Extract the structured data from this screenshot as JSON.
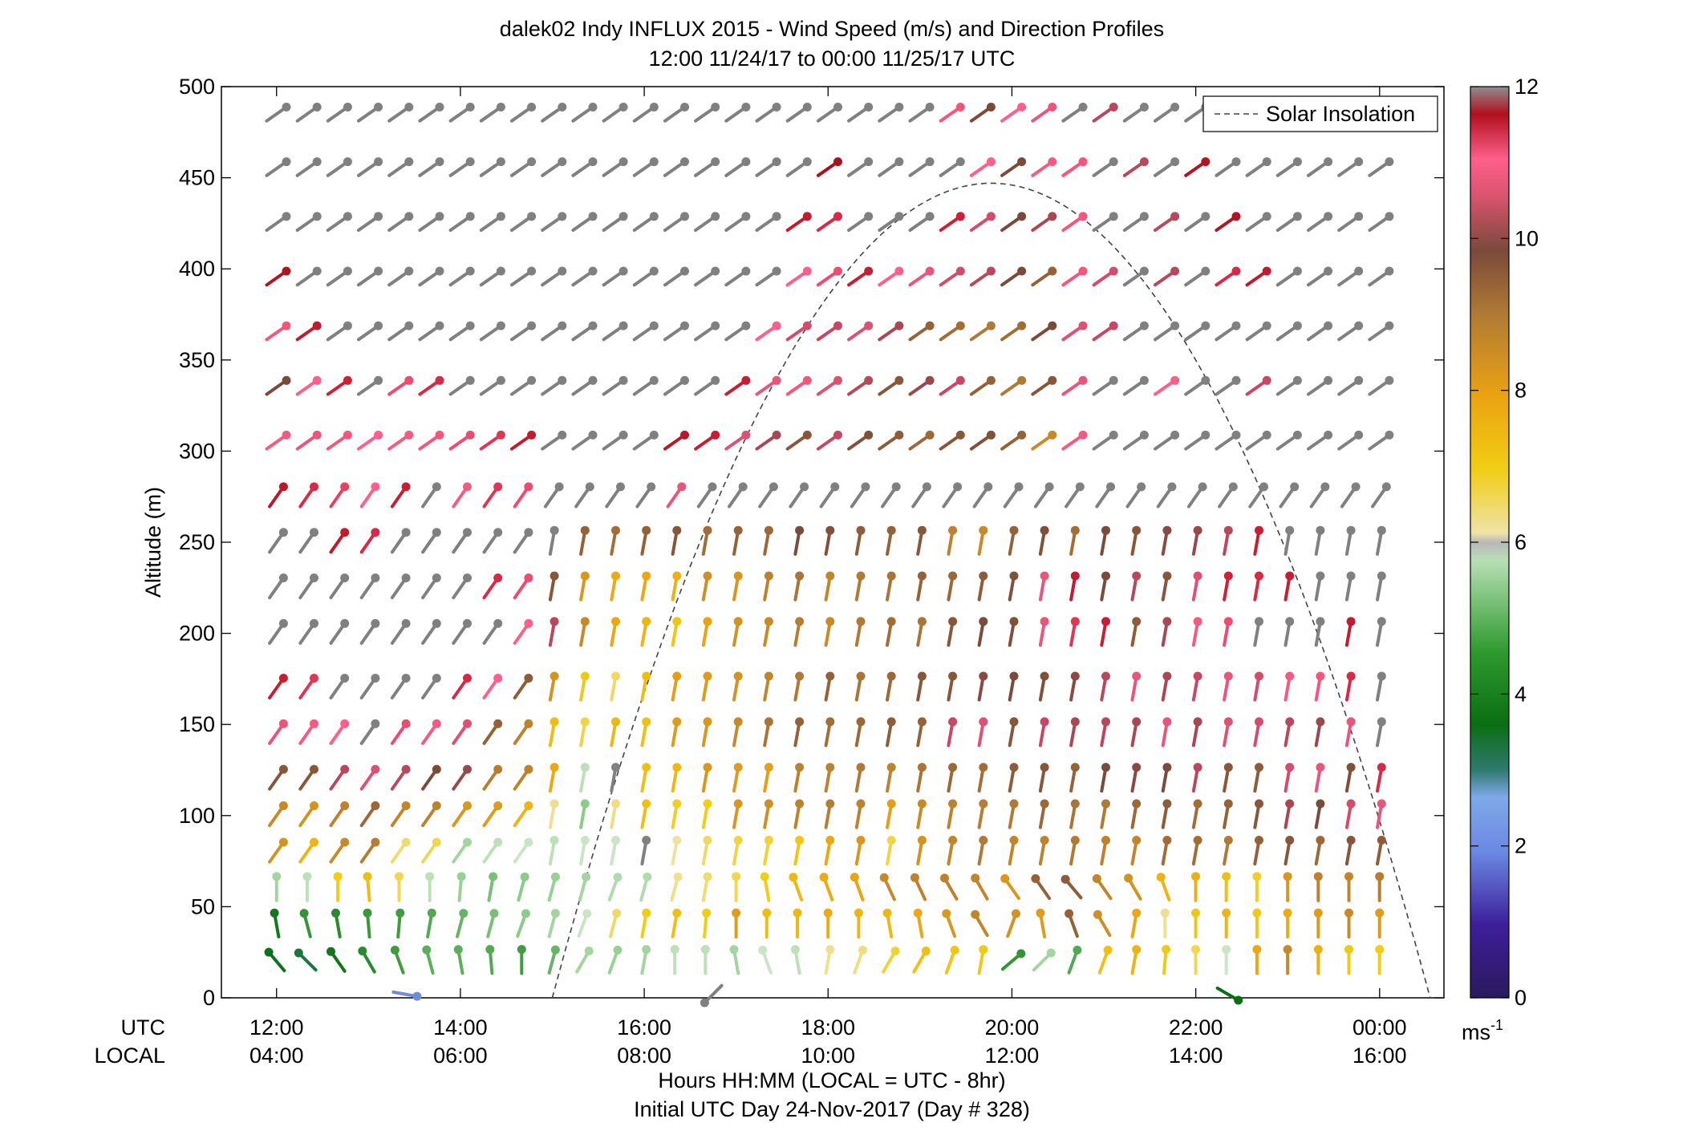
{
  "chart_data": {
    "type": "wind-profile",
    "title": "dalek02 Indy INFLUX 2015 - Wind Speed (m/s) and Direction Profiles",
    "subtitle": "12:00 11/24/17 to 00:00 11/25/17  UTC",
    "ylabel": "Altitude (m)",
    "xlabel": "Hours HH:MM  (LOCAL = UTC - 8hr)",
    "xlabel2": "Initial UTC Day 24-Nov-2017 (Day # 328)",
    "x_row_labels": [
      "UTC",
      "LOCAL"
    ],
    "xlim_hours": [
      11.4,
      24.7
    ],
    "ylim": [
      0,
      500
    ],
    "y_ticks": [
      0,
      50,
      100,
      150,
      200,
      250,
      300,
      350,
      400,
      450,
      500
    ],
    "x_ticks": [
      {
        "hour": 12,
        "utc": "12:00",
        "local": "04:00"
      },
      {
        "hour": 14,
        "utc": "14:00",
        "local": "06:00"
      },
      {
        "hour": 16,
        "utc": "16:00",
        "local": "08:00"
      },
      {
        "hour": 18,
        "utc": "18:00",
        "local": "10:00"
      },
      {
        "hour": 20,
        "utc": "20:00",
        "local": "12:00"
      },
      {
        "hour": 22,
        "utc": "22:00",
        "local": "14:00"
      },
      {
        "hour": 24,
        "utc": "00:00",
        "local": "16:00"
      }
    ],
    "legend": {
      "label": "Solar Insolation",
      "position": "top-right"
    },
    "colorbar": {
      "min": 0,
      "max": 12,
      "ticks": [
        0,
        2,
        4,
        6,
        8,
        10,
        12
      ],
      "unit": "ms",
      "unit_exponent": "-1"
    },
    "solar_insolation": {
      "start_hour": 15.0,
      "peak_hour": 19.75,
      "end_hour": 24.55,
      "peak_altitude": 447
    },
    "altitudes": [
      20,
      40,
      60,
      80,
      100,
      120,
      145,
      170,
      200,
      225,
      250,
      275,
      305,
      335,
      365,
      395,
      425,
      455,
      485
    ],
    "times_start_hour": 12.0,
    "time_step_hours": 0.3333,
    "time_count": 37,
    "speed_grid": [
      [
        3.5,
        3.2,
        3.8,
        4.2,
        4.6,
        4.9,
        4.9,
        4.8,
        4.6,
        5.0,
        5.6,
        5.5,
        5.6,
        5.8,
        5.8,
        5.6,
        5.9,
        5.8,
        6.2,
        6.3,
        6.8,
        7.3,
        7.2,
        7.1,
        4.4,
        5.6,
        4.8,
        7.3,
        7.6,
        7.1,
        6.6,
        5.9,
        7.9,
        8.6,
        7.7,
        7.1,
        7.0
      ],
      [
        3.8,
        4.4,
        4.2,
        4.5,
        4.6,
        4.8,
        5.0,
        5.2,
        5.4,
        5.6,
        5.9,
        6.5,
        7.0,
        7.3,
        7.0,
        8.2,
        7.4,
        7.5,
        7.8,
        7.6,
        7.5,
        7.9,
        8.3,
        8.7,
        8.4,
        8.2,
        9.4,
        8.5,
        7.9,
        6.2,
        7.2,
        7.6,
        7.1,
        7.8,
        8.2,
        8.6,
        8.2
      ],
      [
        5.6,
        5.8,
        7.0,
        7.4,
        6.6,
        5.8,
        5.5,
        5.2,
        5.4,
        5.5,
        5.6,
        5.7,
        5.7,
        6.2,
        6.4,
        6.6,
        7.0,
        7.5,
        7.8,
        8.0,
        8.6,
        8.8,
        8.8,
        8.7,
        8.3,
        9.4,
        9.5,
        8.7,
        8.4,
        7.6,
        7.7,
        7.3,
        6.9,
        8.3,
        8.8,
        8.7,
        8.9
      ],
      [
        8.4,
        7.6,
        8.6,
        8.9,
        6.4,
        6.6,
        5.6,
        5.8,
        5.9,
        5.8,
        5.9,
        5.9,
        6.0,
        6.1,
        6.5,
        6.7,
        6.8,
        7.2,
        7.9,
        8.3,
        6.7,
        8.4,
        8.7,
        9.0,
        8.7,
        8.8,
        9.0,
        8.8,
        8.7,
        9.2,
        9.2,
        9.0,
        9.4,
        9.6,
        9.3,
        9.6,
        9.5
      ],
      [
        8.6,
        8.4,
        8.8,
        9.3,
        8.7,
        8.8,
        8.3,
        8.2,
        7.6,
        6.2,
        5.4,
        6.3,
        7.3,
        6.9,
        7.0,
        8.3,
        8.5,
        8.8,
        8.9,
        8.8,
        8.1,
        8.6,
        8.8,
        8.9,
        9.0,
        9.3,
        9.1,
        9.0,
        9.3,
        9.5,
        9.2,
        9.4,
        9.6,
        10.1,
        9.8,
        10.4,
        10.6
      ],
      [
        9.6,
        9.6,
        10.2,
        10.5,
        10.2,
        9.8,
        10.0,
        8.9,
        8.8,
        7.9,
        5.8,
        6.0,
        7.3,
        7.5,
        8.3,
        8.2,
        8.1,
        8.8,
        8.8,
        9.0,
        8.8,
        9.1,
        9.3,
        9.2,
        9.5,
        9.6,
        9.4,
        9.8,
        9.9,
        9.8,
        10.2,
        9.6,
        9.5,
        10.4,
        10.6,
        9.7,
        11.3
      ],
      [
        10.6,
        10.7,
        10.8,
        6.0,
        11.0,
        10.7,
        10.5,
        9.4,
        8.8,
        7.4,
        6.7,
        7.5,
        7.3,
        8.2,
        8.3,
        8.6,
        9.1,
        9.4,
        9.2,
        9.3,
        9.5,
        9.4,
        10.3,
        10.5,
        9.6,
        10.3,
        10.1,
        10.2,
        10.1,
        10.6,
        10.1,
        10.5,
        10.4,
        10.2,
        10.0,
        10.6,
        6.0
      ],
      [
        11.5,
        11.2,
        6.0,
        6.0,
        6.0,
        6.0,
        11.3,
        10.8,
        9.5,
        8.4,
        7.1,
        6.5,
        7.4,
        8.1,
        8.2,
        8.4,
        8.7,
        9.0,
        9.4,
        9.1,
        9.3,
        9.6,
        9.6,
        9.9,
        9.8,
        9.7,
        9.9,
        10.2,
        10.6,
        10.1,
        10.3,
        10.6,
        10.4,
        10.7,
        10.9,
        11.3,
        6.0
      ],
      [
        6.0,
        6.0,
        6.0,
        6.0,
        6.0,
        6.0,
        6.0,
        6.0,
        10.8,
        10.2,
        8.6,
        7.9,
        7.6,
        7.2,
        8.0,
        8.4,
        8.6,
        8.9,
        8.6,
        9.0,
        9.2,
        9.1,
        9.6,
        9.8,
        9.7,
        10.6,
        11.2,
        11.5,
        9.5,
        10.1,
        10.7,
        11.0,
        6.0,
        6.0,
        6.0,
        11.6,
        6.0
      ],
      [
        6.0,
        6.0,
        6.0,
        6.0,
        6.0,
        6.0,
        6.0,
        11.3,
        11.0,
        9.6,
        8.3,
        7.8,
        7.9,
        7.7,
        8.5,
        8.3,
        8.8,
        9.1,
        8.7,
        9.0,
        9.1,
        9.4,
        9.3,
        9.5,
        9.7,
        10.6,
        11.6,
        9.8,
        10.2,
        9.6,
        10.5,
        11.4,
        11.3,
        11.5,
        6.0,
        6.0,
        6.0
      ],
      [
        6.0,
        6.0,
        11.6,
        11.3,
        6.0,
        6.0,
        6.0,
        6.0,
        6.0,
        6.0,
        9.4,
        9.2,
        9.4,
        9.6,
        9.2,
        9.4,
        9.3,
        9.8,
        9.7,
        9.5,
        9.4,
        9.6,
        8.8,
        8.6,
        9.4,
        9.7,
        9.2,
        9.8,
        9.6,
        9.9,
        10.0,
        10.2,
        11.5,
        6.0,
        6.0,
        6.0,
        6.0
      ],
      [
        11.7,
        11.3,
        11.1,
        10.8,
        11.5,
        6.0,
        10.7,
        11.2,
        11.0,
        6.0,
        6.0,
        6.0,
        6.0,
        10.6,
        6.0,
        6.0,
        6.0,
        6.0,
        6.0,
        6.0,
        6.0,
        6.0,
        6.0,
        6.0,
        6.0,
        6.0,
        6.0,
        6.0,
        6.0,
        6.0,
        6.0,
        6.0,
        6.0,
        6.0,
        6.0,
        6.0,
        6.0
      ],
      [
        10.7,
        10.6,
        10.9,
        10.8,
        10.7,
        10.9,
        11.0,
        11.2,
        11.6,
        6.0,
        6.0,
        6.0,
        6.0,
        11.7,
        11.5,
        10.5,
        10.1,
        9.6,
        10.3,
        9.7,
        9.5,
        9.3,
        9.6,
        9.7,
        9.4,
        8.6,
        10.7,
        6.0,
        6.0,
        6.0,
        6.0,
        6.0,
        6.0,
        6.0,
        6.0,
        6.0,
        6.0
      ],
      [
        9.8,
        10.8,
        11.4,
        6.0,
        11.0,
        11.3,
        6.0,
        6.0,
        6.0,
        6.0,
        6.0,
        6.0,
        6.0,
        6.0,
        6.0,
        11.5,
        10.6,
        10.9,
        10.5,
        10.2,
        9.6,
        10.0,
        10.3,
        9.4,
        9.0,
        9.6,
        10.6,
        6.0,
        6.0,
        10.8,
        6.0,
        6.0,
        10.3,
        6.0,
        6.0,
        6.0,
        6.0
      ],
      [
        10.9,
        11.6,
        6.0,
        6.0,
        6.0,
        6.0,
        6.0,
        6.0,
        6.0,
        6.0,
        6.0,
        6.0,
        6.0,
        6.0,
        6.0,
        6.0,
        10.8,
        10.4,
        10.3,
        10.5,
        10.1,
        9.4,
        9.2,
        9.0,
        9.2,
        9.8,
        10.5,
        10.3,
        6.0,
        6.0,
        6.0,
        6.0,
        6.0,
        6.0,
        6.0,
        6.0,
        6.0
      ],
      [
        11.8,
        6.0,
        6.0,
        6.0,
        6.0,
        6.0,
        6.0,
        6.0,
        6.0,
        6.0,
        6.0,
        6.0,
        6.0,
        6.0,
        6.0,
        6.0,
        6.0,
        10.8,
        11.0,
        11.5,
        10.8,
        10.6,
        10.4,
        10.2,
        9.8,
        9.4,
        10.9,
        10.4,
        6.0,
        10.2,
        6.0,
        11.3,
        11.6,
        6.0,
        6.0,
        6.0,
        6.0
      ],
      [
        6.0,
        6.0,
        6.0,
        6.0,
        6.0,
        6.0,
        6.0,
        6.0,
        6.0,
        6.0,
        6.0,
        6.0,
        6.0,
        6.0,
        6.0,
        6.0,
        6.0,
        11.6,
        11.3,
        6.0,
        6.0,
        6.0,
        11.4,
        10.4,
        9.8,
        10.1,
        10.9,
        6.0,
        6.0,
        10.2,
        6.0,
        11.8,
        6.0,
        6.0,
        6.0,
        6.0,
        6.0
      ],
      [
        6.0,
        6.0,
        6.0,
        6.0,
        6.0,
        6.0,
        6.0,
        6.0,
        6.0,
        6.0,
        6.0,
        6.0,
        6.0,
        6.0,
        6.0,
        6.0,
        6.0,
        6.0,
        11.9,
        6.0,
        6.0,
        6.0,
        6.0,
        10.8,
        9.8,
        10.7,
        10.9,
        6.0,
        10.2,
        6.0,
        11.8,
        6.0,
        6.0,
        6.0,
        6.0,
        6.0,
        6.0
      ],
      [
        6.0,
        6.0,
        6.0,
        6.0,
        6.0,
        6.0,
        6.0,
        6.0,
        6.0,
        6.0,
        6.0,
        6.0,
        6.0,
        6.0,
        6.0,
        6.0,
        6.0,
        6.0,
        6.0,
        6.0,
        6.0,
        6.0,
        10.9,
        9.8,
        10.8,
        10.6,
        6.0,
        10.2,
        6.0,
        6.0,
        6.0,
        6.0,
        6.0,
        6.0,
        6.0,
        6.0,
        6.0
      ]
    ],
    "direction_grid_rows": [
      {
        "from_deg": [
          320,
          315,
          325,
          330,
          340,
          345,
          350,
          355,
          0,
          15,
          30,
          20,
          10,
          0,
          0,
          350,
          340,
          350,
          10,
          20,
          30,
          30,
          20,
          10,
          50,
          45,
          20,
          20,
          10,
          5,
          0,
          0,
          0,
          0,
          0,
          0,
          0
        ]
      },
      {
        "from_deg": [
          350,
          345,
          350,
          355,
          5,
          10,
          15,
          15,
          20,
          15,
          20,
          15,
          10,
          10,
          5,
          0,
          0,
          0,
          0,
          0,
          350,
          350,
          340,
          330,
          20,
          350,
          340,
          330,
          10,
          0,
          0,
          0,
          0,
          0,
          0,
          0,
          0
        ]
      },
      {
        "from_deg": [
          0,
          0,
          0,
          355,
          0,
          0,
          5,
          10,
          15,
          15,
          15,
          20,
          15,
          15,
          10,
          0,
          350,
          340,
          340,
          340,
          335,
          335,
          330,
          330,
          325,
          325,
          320,
          325,
          330,
          340,
          0,
          0,
          0,
          0,
          0,
          0,
          0
        ]
      }
    ],
    "default_direction_deg": 35,
    "surface_markers": [
      {
        "hour": 13.4,
        "altitude": 2,
        "speed": 1.8,
        "dir_deg": 280
      },
      {
        "hour": 16.75,
        "altitude": 2,
        "speed": 6.0,
        "dir_deg": 45
      },
      {
        "hour": 22.35,
        "altitude": 2,
        "speed": 3.6,
        "dir_deg": 300
      }
    ]
  }
}
